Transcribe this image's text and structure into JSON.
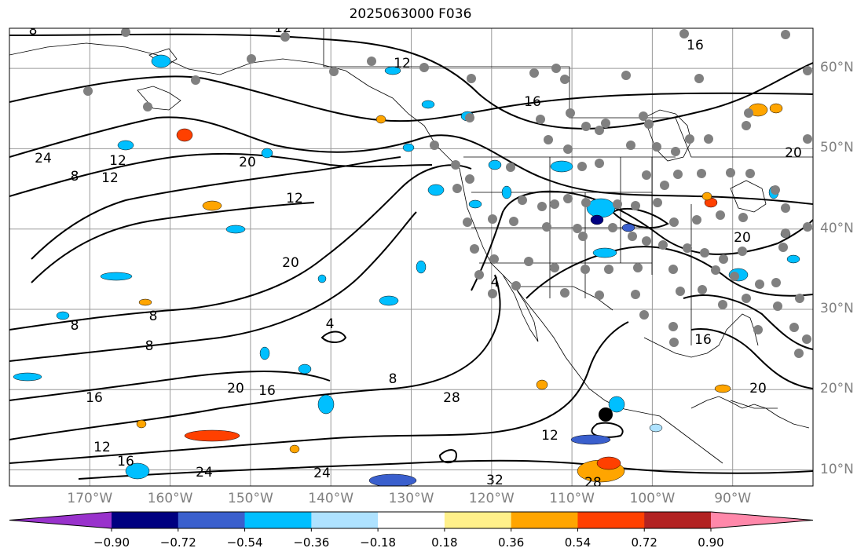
{
  "title": "2025063000 F036",
  "map": {
    "projection": "cylindrical",
    "lon_range": [
      -180,
      -80
    ],
    "lat_range": [
      8,
      65
    ],
    "grid": true,
    "lat_ticks": [
      {
        "value": 60,
        "label": "60°N"
      },
      {
        "value": 50,
        "label": "50°N"
      },
      {
        "value": 40,
        "label": "40°N"
      },
      {
        "value": 30,
        "label": "30°N"
      },
      {
        "value": 20,
        "label": "20°N"
      },
      {
        "value": 10,
        "label": "10°N"
      }
    ],
    "lon_ticks": [
      {
        "value": -170,
        "label": "170°W"
      },
      {
        "value": -160,
        "label": "160°W"
      },
      {
        "value": -150,
        "label": "150°W"
      },
      {
        "value": -140,
        "label": "140°W"
      },
      {
        "value": -130,
        "label": "130°W"
      },
      {
        "value": -120,
        "label": "120°W"
      },
      {
        "value": -110,
        "label": "110°W"
      },
      {
        "value": -100,
        "label": "100°W"
      },
      {
        "value": -90,
        "label": "90°W"
      }
    ],
    "contour_labels": [
      "8",
      "12",
      "12",
      "16",
      "16",
      "20",
      "24",
      "8",
      "12",
      "12",
      "20",
      "12",
      "20",
      "8",
      "8",
      "20",
      "16",
      "4",
      "8",
      "28",
      "12",
      "4",
      "16",
      "20",
      "20",
      "28",
      "32",
      "24",
      "24",
      "16",
      "12",
      "8",
      "16"
    ],
    "station_marker_color": "#808080",
    "tc_marker_color": "#000000"
  },
  "colorbar": {
    "extend": "both",
    "bins": [
      {
        "color": "#9932cc"
      },
      {
        "color": "#000080"
      },
      {
        "color": "#3a5fcd"
      },
      {
        "color": "#00bfff"
      },
      {
        "color": "#aee2ff"
      },
      {
        "color": "#ffffff"
      },
      {
        "color": "#fff08a"
      },
      {
        "color": "#ffa500"
      },
      {
        "color": "#ff4000"
      },
      {
        "color": "#b22222"
      },
      {
        "color": "#ff88aa"
      }
    ],
    "tick_labels": [
      "−0.90",
      "−0.72",
      "−0.54",
      "−0.36",
      "−0.18",
      "0.18",
      "0.36",
      "0.54",
      "0.72",
      "0.90"
    ]
  }
}
